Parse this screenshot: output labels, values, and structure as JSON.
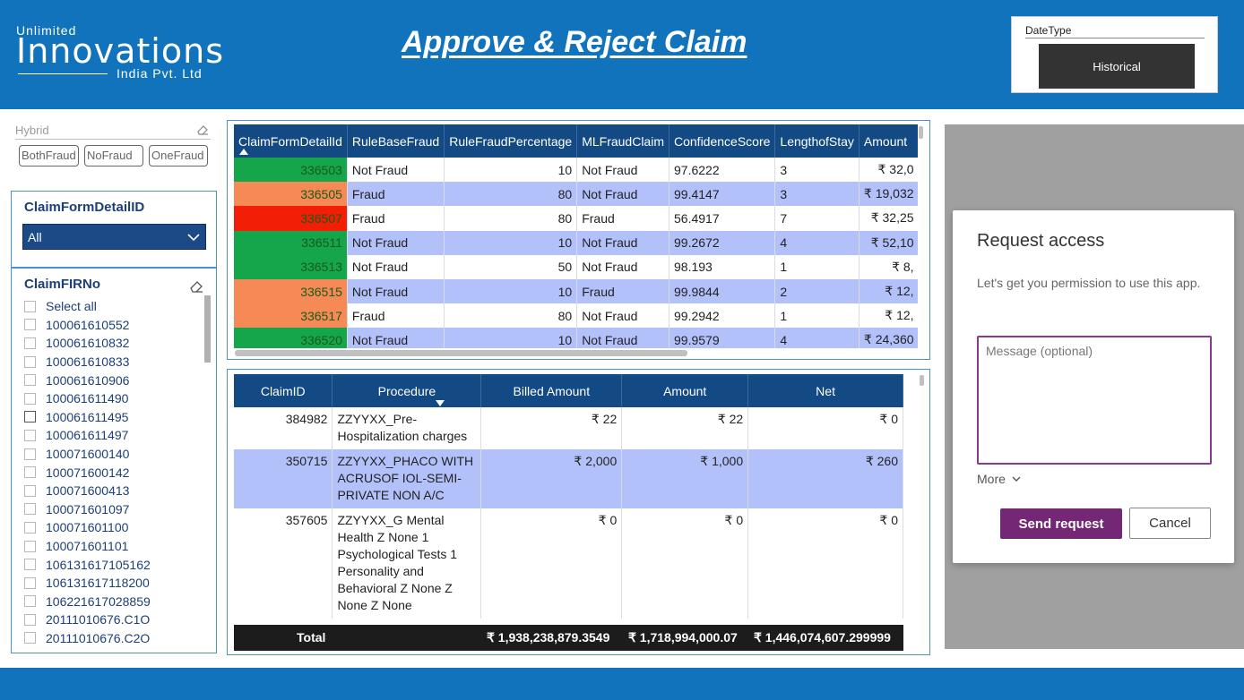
{
  "header": {
    "logo": {
      "line1": "Unlimited",
      "line2": "Innovations",
      "line3": "India Pvt. Ltd"
    },
    "title": "Approve & Reject Claim"
  },
  "datetype": {
    "label": "DateType",
    "selected": "Historical"
  },
  "hybrid": {
    "label": "Hybrid",
    "chips": [
      "BothFraud",
      "NoFraud",
      "OneFraud"
    ]
  },
  "claim_form_slicer": {
    "title": "ClaimFormDetailID",
    "selected": "All"
  },
  "claim_fir_slicer": {
    "title": "ClaimFIRNo",
    "select_all": "Select all",
    "items": [
      "100061610552",
      "100061610832",
      "100061610833",
      "100061610906",
      "100061611490",
      "100061611495",
      "100061611497",
      "100071600140",
      "100071600142",
      "100071600413",
      "100071601097",
      "100071601100",
      "100071601101",
      "106131617105162",
      "106131617118200",
      "106221617028859",
      "20111010676.C1O",
      "20111010676.C2O"
    ]
  },
  "fraud_table": {
    "columns": [
      "ClaimFormDetailId",
      "RuleBaseFraud",
      "RuleFraudPercentage",
      "MLFraudClaim",
      "ConfidenceScore",
      "LengthofStay",
      "Amount"
    ],
    "rows": [
      {
        "id": "336503",
        "rule": "Not Fraud",
        "pct": "10",
        "ml": "Not Fraud",
        "score": "97.6222",
        "stay": "3",
        "amount": "₹ 32,0",
        "color": "#15a54a"
      },
      {
        "id": "336505",
        "rule": "Fraud",
        "pct": "80",
        "ml": "Not Fraud",
        "score": "99.4147",
        "stay": "3",
        "amount": "₹ 19,032",
        "color": "#f58a56"
      },
      {
        "id": "336507",
        "rule": "Fraud",
        "pct": "80",
        "ml": "Fraud",
        "score": "56.4917",
        "stay": "7",
        "amount": "₹ 32,25",
        "color": "#f21e06"
      },
      {
        "id": "336511",
        "rule": "Not Fraud",
        "pct": "10",
        "ml": "Not Fraud",
        "score": "99.2672",
        "stay": "4",
        "amount": "₹ 52,10",
        "color": "#15a54a"
      },
      {
        "id": "336513",
        "rule": "Not Fraud",
        "pct": "50",
        "ml": "Not Fraud",
        "score": "98.193",
        "stay": "1",
        "amount": "₹ 8,",
        "color": "#15a54a"
      },
      {
        "id": "336515",
        "rule": "Not Fraud",
        "pct": "10",
        "ml": "Fraud",
        "score": "99.9844",
        "stay": "2",
        "amount": "₹ 12,",
        "color": "#f58a56"
      },
      {
        "id": "336517",
        "rule": "Fraud",
        "pct": "80",
        "ml": "Not Fraud",
        "score": "99.2942",
        "stay": "1",
        "amount": "₹ 12,",
        "color": "#f58a56"
      },
      {
        "id": "336520",
        "rule": "Not Fraud",
        "pct": "10",
        "ml": "Not Fraud",
        "score": "99.9579",
        "stay": "4",
        "amount": "₹ 24,360",
        "color": "#15a54a"
      }
    ]
  },
  "procedure_table": {
    "columns": [
      "ClaimID",
      "Procedure",
      "Billed Amount",
      "Amount",
      "Net"
    ],
    "rows": [
      {
        "claim": "384982",
        "procedure": "ZZYYXX_Pre-Hospitalization charges",
        "billed": "₹ 22",
        "amount": "₹ 22",
        "net": "₹ 0"
      },
      {
        "claim": "350715",
        "procedure": "ZZYYXX_PHACO WITH ACRUSOF IOL-SEMI-PRIVATE NON A/C",
        "billed": "₹ 2,000",
        "amount": "₹ 1,000",
        "net": "₹ 260"
      },
      {
        "claim": "357605",
        "procedure": "ZZYYXX_G Mental Health Z None 1 Psychological Tests 1 Personality and Behavioral Z None Z None Z None",
        "billed": "₹ 0",
        "amount": "₹ 0",
        "net": "₹ 0"
      }
    ],
    "total": {
      "label": "Total",
      "billed": "₹ 1,938,238,879.3549",
      "amount": "₹ 1,718,994,000.07",
      "net": "₹ 1,446,074,607.299999"
    }
  },
  "request_access": {
    "title": "Request access",
    "description": "Let's get you permission to use this app.",
    "message_placeholder": "Message (optional)",
    "more_label": "More",
    "send_label": "Send request",
    "cancel_label": "Cancel"
  }
}
